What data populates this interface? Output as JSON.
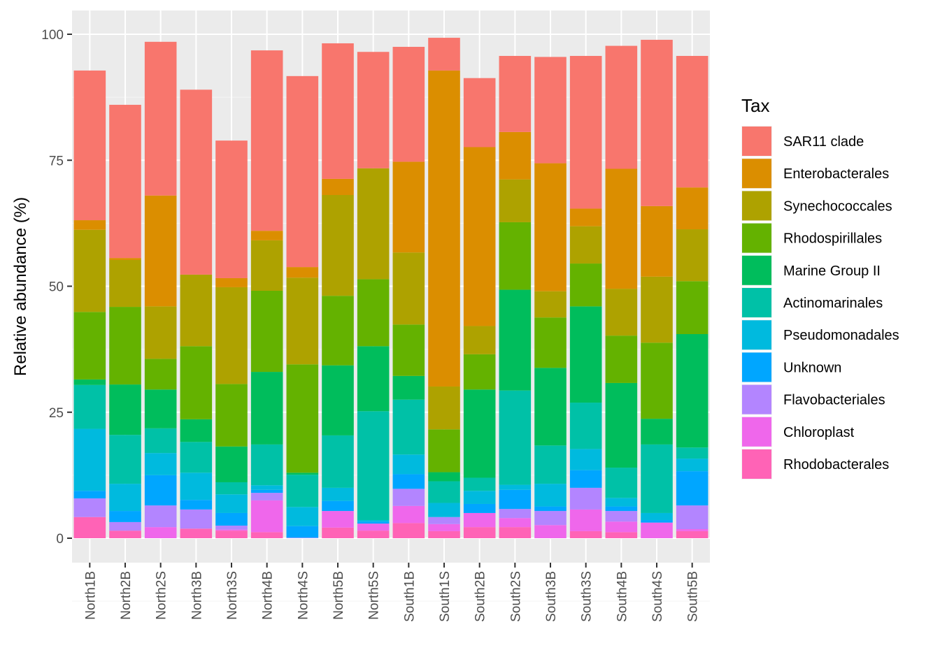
{
  "chart_data": {
    "type": "bar",
    "stacked": true,
    "title": "",
    "xlabel": "",
    "ylabel": "Relative abundance (%)",
    "ylim": [
      0,
      105
    ],
    "yticks": [
      0,
      25,
      50,
      75,
      100
    ],
    "grid": true,
    "legend": {
      "title": "Tax",
      "position": "right"
    },
    "categories": [
      "North1B",
      "North2B",
      "North2S",
      "North3B",
      "North3S",
      "North4B",
      "North4S",
      "North5B",
      "North5S",
      "South1B",
      "South1S",
      "South2B",
      "South2S",
      "South3B",
      "South3S",
      "South4B",
      "South4S",
      "South5B"
    ],
    "series": [
      {
        "name": "SAR11 clade",
        "color": "#F8766D",
        "values": [
          29.7,
          30.4,
          30.5,
          36.7,
          27.3,
          35.8,
          37.9,
          26.9,
          23.1,
          22.8,
          6.5,
          13.7,
          15.1,
          21.1,
          30.3,
          24.4,
          33.0,
          26.1
        ]
      },
      {
        "name": "Enterobacterales",
        "color": "#DB8E00",
        "values": [
          1.9,
          0.4,
          22.0,
          0.0,
          1.8,
          1.9,
          2.1,
          3.2,
          0.0,
          18.0,
          62.7,
          35.5,
          9.4,
          25.4,
          3.5,
          23.8,
          14.0,
          8.3
        ]
      },
      {
        "name": "Synechococcales",
        "color": "#AEA200",
        "values": [
          16.3,
          9.3,
          10.4,
          14.2,
          19.2,
          10.0,
          17.2,
          20.0,
          22.0,
          14.3,
          8.5,
          5.6,
          8.5,
          5.2,
          7.4,
          9.3,
          13.1,
          10.3
        ]
      },
      {
        "name": "Rhodospirillales",
        "color": "#64B200",
        "values": [
          13.4,
          15.4,
          6.1,
          14.5,
          12.4,
          16.1,
          21.5,
          13.8,
          13.3,
          10.2,
          8.5,
          7.0,
          13.4,
          10.0,
          8.5,
          9.4,
          15.1,
          10.5
        ]
      },
      {
        "name": "Marine Group II",
        "color": "#00BD5C",
        "values": [
          1.1,
          10.0,
          7.7,
          4.5,
          7.1,
          14.4,
          0.4,
          13.9,
          12.9,
          4.7,
          1.8,
          17.5,
          20.0,
          15.4,
          19.1,
          16.8,
          5.1,
          22.5
        ]
      },
      {
        "name": "Actinomarinales",
        "color": "#00C1A7",
        "values": [
          8.7,
          9.7,
          4.9,
          6.1,
          2.4,
          8.1,
          6.4,
          10.4,
          21.6,
          10.9,
          4.3,
          2.6,
          18.7,
          7.6,
          9.2,
          6.0,
          13.6,
          2.2
        ]
      },
      {
        "name": "Pseudomonadales",
        "color": "#00BADE",
        "values": [
          12.3,
          5.4,
          4.4,
          5.4,
          3.7,
          0.9,
          3.8,
          2.6,
          0.3,
          3.9,
          2.8,
          2.6,
          1.0,
          4.5,
          4.2,
          1.7,
          1.4,
          2.5
        ]
      },
      {
        "name": "Unknown",
        "color": "#00A6FF",
        "values": [
          1.5,
          2.2,
          6.0,
          1.9,
          2.5,
          0.6,
          2.3,
          2.0,
          0.4,
          2.9,
          0.0,
          1.8,
          3.8,
          0.9,
          3.5,
          0.9,
          0.5,
          6.8
        ]
      },
      {
        "name": "Flavobacteriales",
        "color": "#B385FF",
        "values": [
          3.7,
          1.7,
          4.3,
          3.8,
          0.8,
          1.5,
          0.1,
          0.0,
          0.0,
          3.4,
          1.4,
          0.0,
          1.8,
          2.8,
          4.3,
          2.1,
          0.0,
          4.7
        ]
      },
      {
        "name": "Chloroplast",
        "color": "#EF67EB",
        "values": [
          0.0,
          0.0,
          2.2,
          0.0,
          0.2,
          6.3,
          0.0,
          3.3,
          1.4,
          3.4,
          1.4,
          2.8,
          1.8,
          2.6,
          4.3,
          2.1,
          3.1,
          0.4
        ]
      },
      {
        "name": "Rhodobacterales",
        "color": "#FF63B6",
        "values": [
          4.2,
          1.5,
          0.0,
          1.9,
          1.5,
          1.2,
          0.0,
          2.1,
          1.5,
          3.0,
          1.4,
          2.2,
          2.2,
          0.0,
          1.4,
          1.2,
          0.0,
          1.4
        ]
      }
    ]
  }
}
